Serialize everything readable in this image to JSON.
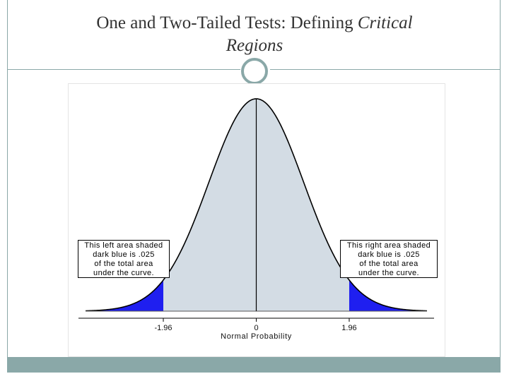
{
  "slide": {
    "title_main": "One and Two-Tailed Tests: Defining ",
    "title_emphasis_1": "Critical",
    "title_emphasis_2": "Regions",
    "accent_color": "#8aa8a8"
  },
  "chart_data": {
    "type": "area",
    "distribution": "standard normal",
    "xlim": [
      -3.6,
      3.6
    ],
    "x_ticks": [
      -1.96,
      0,
      1.96
    ],
    "x_tick_labels": [
      "-1.96",
      "0",
      "1.96"
    ],
    "xlabel": "Normal Probability",
    "critical_values": [
      -1.96,
      1.96
    ],
    "tail_area_each": 0.025,
    "colors": {
      "body_fill": "#d3dce4",
      "tail_fill": "#1f1ff0",
      "curve": "#000000"
    },
    "annotations": [
      {
        "side": "left",
        "lines": [
          "This left area shaded",
          "dark blue is .025",
          "of the total area",
          "under the curve."
        ]
      },
      {
        "side": "right",
        "lines": [
          "This right area shaded",
          "dark blue is .025",
          "of the total area",
          "under the curve."
        ]
      }
    ]
  }
}
